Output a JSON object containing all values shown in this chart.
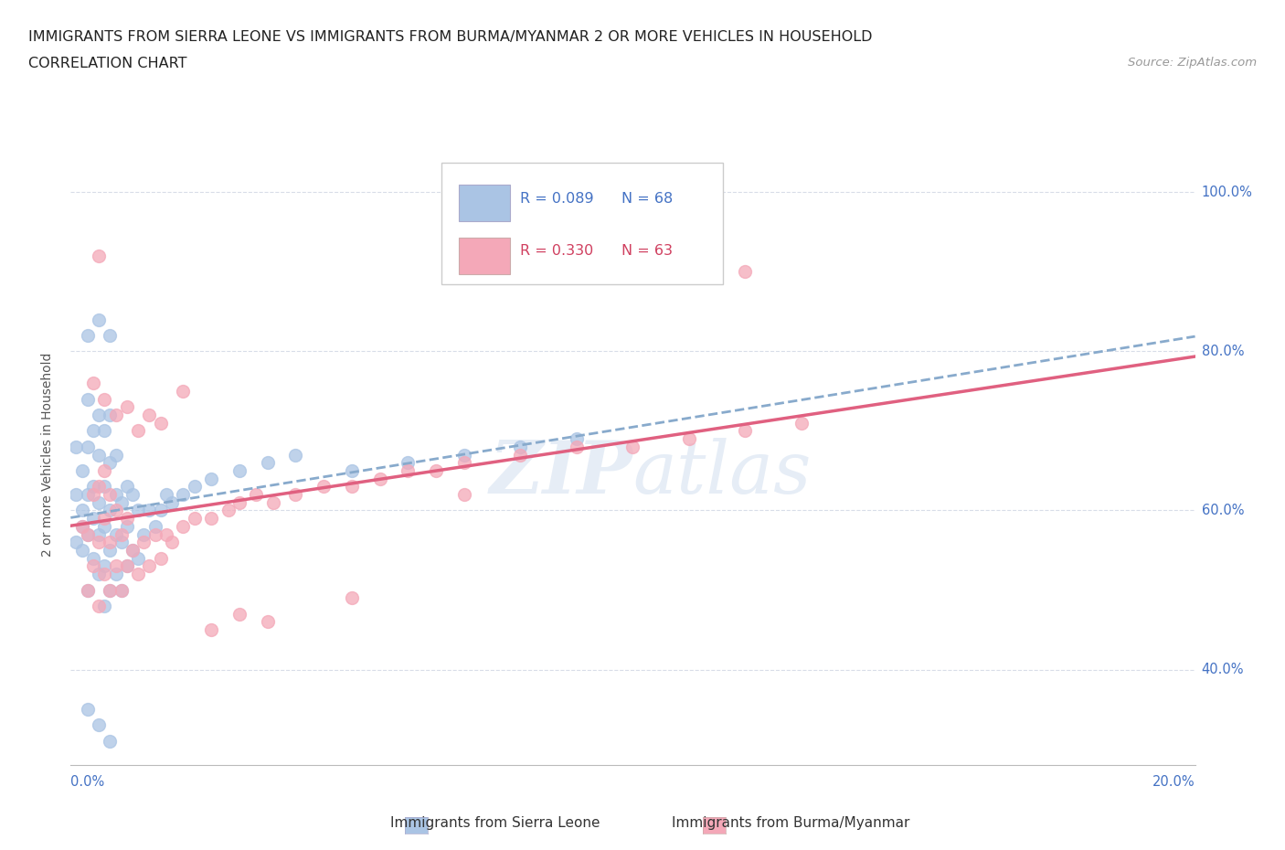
{
  "title_line1": "IMMIGRANTS FROM SIERRA LEONE VS IMMIGRANTS FROM BURMA/MYANMAR 2 OR MORE VEHICLES IN HOUSEHOLD",
  "title_line2": "CORRELATION CHART",
  "source_text": "Source: ZipAtlas.com",
  "ylabel": "2 or more Vehicles in Household",
  "ytick_values": [
    0.4,
    0.6,
    0.8,
    1.0
  ],
  "ytick_labels": [
    "40.0%",
    "60.0%",
    "80.0%",
    "100.0%"
  ],
  "xmin": 0.0,
  "xmax": 0.2,
  "ymin": 0.28,
  "ymax": 1.06,
  "watermark": "ZIPAtlas",
  "legend_label1": "Immigrants from Sierra Leone",
  "legend_label2": "Immigrants from Burma/Myanmar",
  "color_sierra": "#aac4e4",
  "color_burma": "#f4a8b8",
  "color_text_blue": "#4472c4",
  "color_text_pink": "#d04060",
  "dashed_line_color": "#88aacc",
  "solid_line_color": "#e06080",
  "grid_color": "#d8dde8",
  "sierra_x": [
    0.001,
    0.001,
    0.001,
    0.002,
    0.002,
    0.002,
    0.002,
    0.003,
    0.003,
    0.003,
    0.003,
    0.003,
    0.004,
    0.004,
    0.004,
    0.004,
    0.005,
    0.005,
    0.005,
    0.005,
    0.005,
    0.006,
    0.006,
    0.006,
    0.006,
    0.006,
    0.007,
    0.007,
    0.007,
    0.007,
    0.007,
    0.008,
    0.008,
    0.008,
    0.008,
    0.009,
    0.009,
    0.009,
    0.01,
    0.01,
    0.01,
    0.011,
    0.011,
    0.012,
    0.012,
    0.013,
    0.014,
    0.015,
    0.016,
    0.017,
    0.018,
    0.02,
    0.022,
    0.025,
    0.03,
    0.035,
    0.04,
    0.05,
    0.06,
    0.07,
    0.08,
    0.09,
    0.003,
    0.005,
    0.007,
    0.003,
    0.005,
    0.007
  ],
  "sierra_y": [
    0.56,
    0.62,
    0.68,
    0.55,
    0.6,
    0.65,
    0.58,
    0.5,
    0.57,
    0.62,
    0.68,
    0.74,
    0.54,
    0.59,
    0.63,
    0.7,
    0.52,
    0.57,
    0.61,
    0.67,
    0.72,
    0.48,
    0.53,
    0.58,
    0.63,
    0.7,
    0.5,
    0.55,
    0.6,
    0.66,
    0.72,
    0.52,
    0.57,
    0.62,
    0.67,
    0.5,
    0.56,
    0.61,
    0.53,
    0.58,
    0.63,
    0.55,
    0.62,
    0.54,
    0.6,
    0.57,
    0.6,
    0.58,
    0.6,
    0.62,
    0.61,
    0.62,
    0.63,
    0.64,
    0.65,
    0.66,
    0.67,
    0.65,
    0.66,
    0.67,
    0.68,
    0.69,
    0.82,
    0.84,
    0.82,
    0.35,
    0.33,
    0.31
  ],
  "burma_x": [
    0.002,
    0.003,
    0.003,
    0.004,
    0.004,
    0.005,
    0.005,
    0.005,
    0.006,
    0.006,
    0.006,
    0.007,
    0.007,
    0.007,
    0.008,
    0.008,
    0.009,
    0.009,
    0.01,
    0.01,
    0.011,
    0.012,
    0.013,
    0.014,
    0.015,
    0.016,
    0.017,
    0.018,
    0.02,
    0.022,
    0.025,
    0.028,
    0.03,
    0.033,
    0.036,
    0.04,
    0.045,
    0.05,
    0.055,
    0.06,
    0.065,
    0.07,
    0.08,
    0.09,
    0.1,
    0.11,
    0.12,
    0.13,
    0.004,
    0.006,
    0.008,
    0.01,
    0.012,
    0.014,
    0.016,
    0.02,
    0.025,
    0.03,
    0.035,
    0.05,
    0.07,
    0.12,
    0.005
  ],
  "burma_y": [
    0.58,
    0.5,
    0.57,
    0.53,
    0.62,
    0.48,
    0.56,
    0.63,
    0.52,
    0.59,
    0.65,
    0.5,
    0.56,
    0.62,
    0.53,
    0.6,
    0.5,
    0.57,
    0.53,
    0.59,
    0.55,
    0.52,
    0.56,
    0.53,
    0.57,
    0.54,
    0.57,
    0.56,
    0.58,
    0.59,
    0.59,
    0.6,
    0.61,
    0.62,
    0.61,
    0.62,
    0.63,
    0.63,
    0.64,
    0.65,
    0.65,
    0.66,
    0.67,
    0.68,
    0.68,
    0.69,
    0.7,
    0.71,
    0.76,
    0.74,
    0.72,
    0.73,
    0.7,
    0.72,
    0.71,
    0.75,
    0.45,
    0.47,
    0.46,
    0.49,
    0.62,
    0.9,
    0.92
  ],
  "sierra_R": 0.089,
  "sierra_N": 68,
  "burma_R": 0.33,
  "burma_N": 63
}
